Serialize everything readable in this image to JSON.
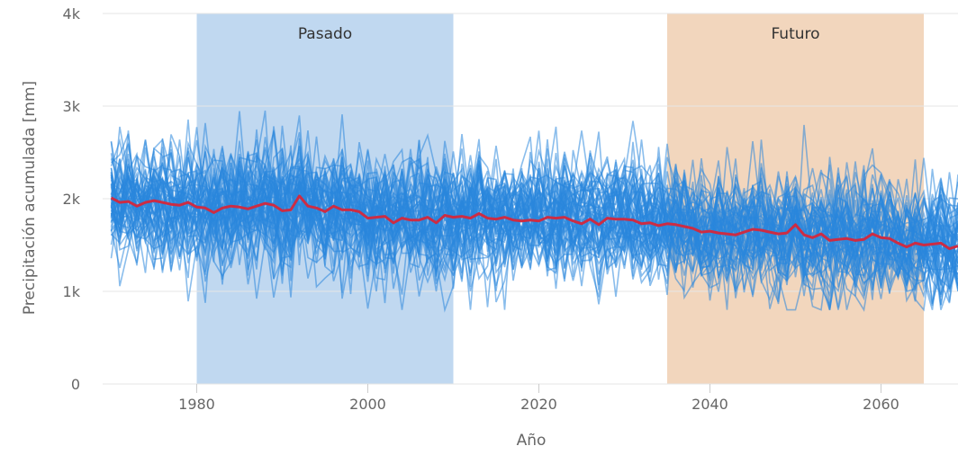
{
  "chart_data": {
    "type": "line",
    "title": "",
    "xlabel": "Año",
    "ylabel": "Precipitación acumulada [mm]",
    "xlim": [
      1969,
      2069
    ],
    "ylim": [
      0,
      4000
    ],
    "x_ticks": [
      {
        "value": 1980,
        "label": "1980"
      },
      {
        "value": 2000,
        "label": "2000"
      },
      {
        "value": 2020,
        "label": "2020"
      },
      {
        "value": 2040,
        "label": "2040"
      },
      {
        "value": 2060,
        "label": "2060"
      }
    ],
    "y_ticks": [
      {
        "value": 0,
        "label": "0"
      },
      {
        "value": 1000,
        "label": "1k"
      },
      {
        "value": 2000,
        "label": "2k"
      },
      {
        "value": 3000,
        "label": "3k"
      },
      {
        "value": 4000,
        "label": "4k"
      }
    ],
    "grid": {
      "horizontal": true,
      "vertical": false
    },
    "bands": [
      {
        "label": "Pasado",
        "from": 1980,
        "to": 2010,
        "color": "#c0d8f0"
      },
      {
        "label": "Futuro",
        "from": 2035,
        "to": 2065,
        "color": "#f2d6bd"
      }
    ],
    "ensemble": {
      "member_count": 60,
      "color": "#2a86dc",
      "description_values": "each member ~ mean trend with interannual variability, range ~800-3300 mm"
    },
    "mean_series": {
      "color": "#cc2c44",
      "x": [
        1970,
        1971,
        1972,
        1973,
        1974,
        1975,
        1976,
        1977,
        1978,
        1979,
        1980,
        1981,
        1982,
        1983,
        1984,
        1985,
        1986,
        1987,
        1988,
        1989,
        1990,
        1991,
        1992,
        1993,
        1994,
        1995,
        1996,
        1997,
        1998,
        1999,
        2000,
        2001,
        2002,
        2003,
        2004,
        2005,
        2006,
        2007,
        2008,
        2009,
        2010,
        2011,
        2012,
        2013,
        2014,
        2015,
        2016,
        2017,
        2018,
        2019,
        2020,
        2021,
        2022,
        2023,
        2024,
        2025,
        2026,
        2027,
        2028,
        2029,
        2030,
        2031,
        2032,
        2033,
        2034,
        2035,
        2036,
        2037,
        2038,
        2039,
        2040,
        2041,
        2042,
        2043,
        2044,
        2045,
        2046,
        2047,
        2048,
        2049,
        2050,
        2051,
        2052,
        2053,
        2054,
        2055,
        2056,
        2057,
        2058,
        2059,
        2060,
        2061,
        2062,
        2063,
        2064,
        2065,
        2066,
        2067,
        2068,
        2069
      ],
      "values": [
        2010,
        1960,
        1970,
        1920,
        1960,
        1980,
        1960,
        1940,
        1930,
        1960,
        1910,
        1900,
        1850,
        1900,
        1920,
        1910,
        1890,
        1920,
        1950,
        1930,
        1870,
        1880,
        2030,
        1920,
        1900,
        1860,
        1920,
        1880,
        1880,
        1860,
        1790,
        1800,
        1810,
        1740,
        1790,
        1770,
        1770,
        1800,
        1740,
        1820,
        1800,
        1810,
        1790,
        1840,
        1790,
        1780,
        1800,
        1770,
        1760,
        1770,
        1760,
        1800,
        1790,
        1800,
        1760,
        1730,
        1780,
        1720,
        1790,
        1780,
        1780,
        1770,
        1730,
        1740,
        1710,
        1730,
        1720,
        1700,
        1680,
        1640,
        1650,
        1630,
        1620,
        1610,
        1640,
        1670,
        1660,
        1640,
        1620,
        1630,
        1720,
        1610,
        1580,
        1620,
        1550,
        1560,
        1570,
        1550,
        1560,
        1620,
        1580,
        1570,
        1520,
        1480,
        1520,
        1500,
        1510,
        1520,
        1460,
        1490
      ]
    }
  }
}
